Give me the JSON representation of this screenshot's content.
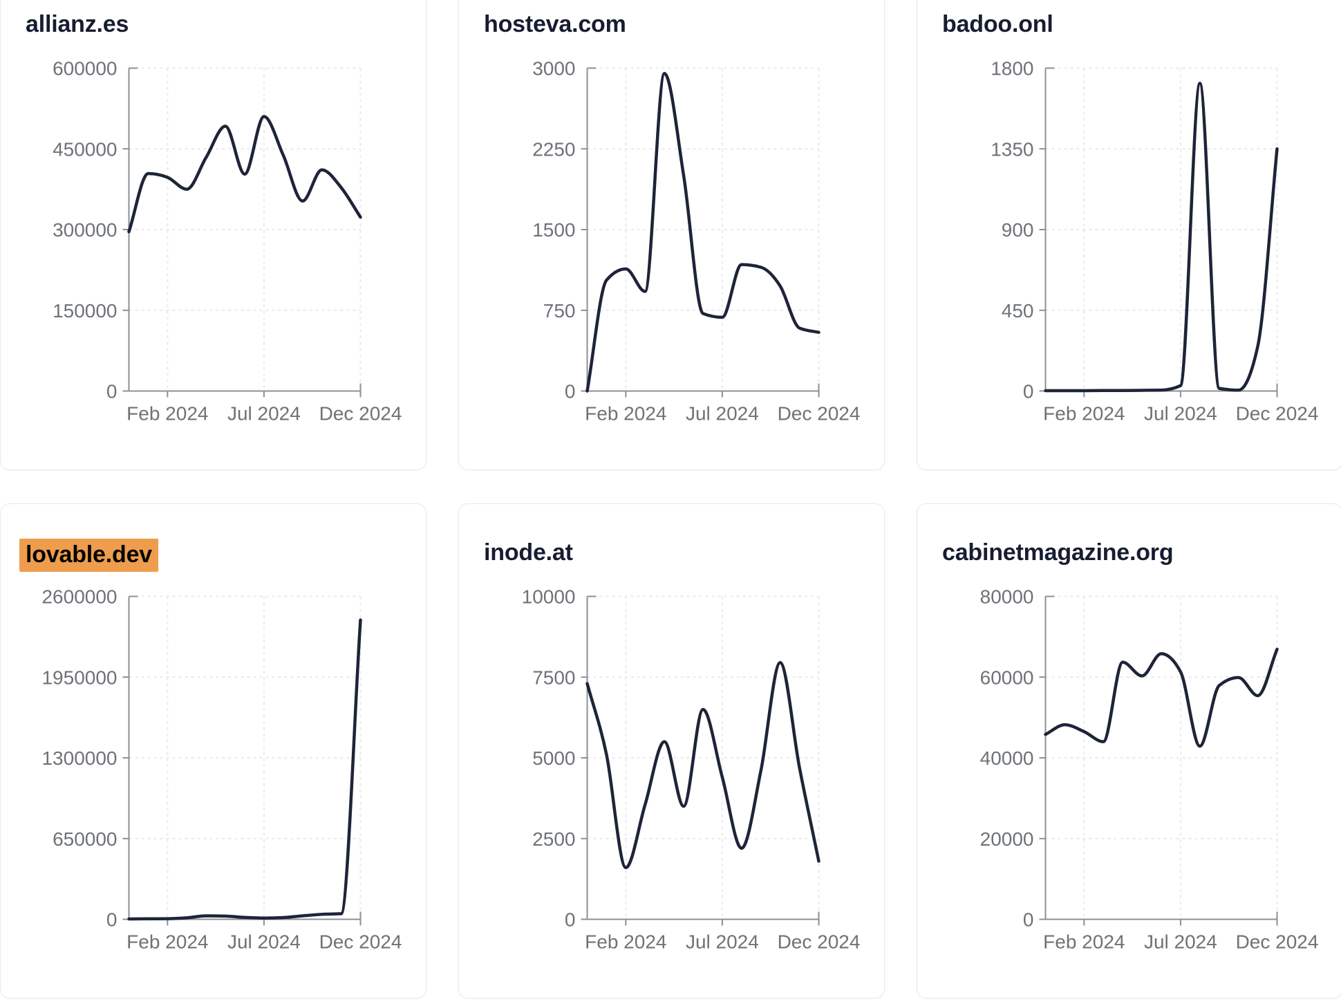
{
  "page": {
    "background": "#ffffff",
    "description": "Dashboard grid of six domain traffic line charts"
  },
  "colors": {
    "line": "#1e2438",
    "title": "#161d31",
    "axis_text": "#6e7277",
    "axis_stroke": "#8b8f96",
    "gridline": "#e9eaee",
    "card_border": "#e9e9f0",
    "highlight": "#ee9d4d"
  },
  "x_axis": {
    "tick_labels": [
      "Feb 2024",
      "Jul 2024",
      "Dec 2024"
    ],
    "tick_indices": [
      2,
      7,
      12
    ],
    "n_points": 13
  },
  "chart_data": [
    {
      "type": "line",
      "title": "allianz.es",
      "highlighted": false,
      "x": [
        "Dec 2023",
        "Jan 2024",
        "Feb 2024",
        "Mar 2024",
        "Apr 2024",
        "May 2024",
        "Jun 2024",
        "Jul 2024",
        "Aug 2024",
        "Sep 2024",
        "Oct 2024",
        "Nov 2024",
        "Dec 2024"
      ],
      "xlabel": "",
      "ylabel": "",
      "ylim": [
        0,
        600000
      ],
      "y_ticks": [
        0,
        150000,
        300000,
        450000,
        600000
      ],
      "values": [
        296000,
        404000,
        397000,
        375000,
        434000,
        492000,
        403000,
        510000,
        438000,
        353000,
        411000,
        378000,
        323000
      ],
      "legend": "none",
      "grid": "dashed"
    },
    {
      "type": "line",
      "title": "hosteva.com",
      "highlighted": false,
      "x": [
        "Dec 2023",
        "Jan 2024",
        "Feb 2024",
        "Mar 2024",
        "Apr 2024",
        "May 2024",
        "Jun 2024",
        "Jul 2024",
        "Aug 2024",
        "Sep 2024",
        "Oct 2024",
        "Nov 2024",
        "Dec 2024"
      ],
      "xlabel": "",
      "ylabel": "",
      "ylim": [
        0,
        3000
      ],
      "y_ticks": [
        0,
        750,
        1500,
        2250,
        3000
      ],
      "values": [
        0,
        1030,
        1135,
        925,
        2950,
        2000,
        720,
        685,
        1175,
        1150,
        975,
        585,
        545
      ],
      "legend": "none",
      "grid": "dashed"
    },
    {
      "type": "line",
      "title": "badoo.onl",
      "highlighted": false,
      "x": [
        "Dec 2023",
        "Jan 2024",
        "Feb 2024",
        "Mar 2024",
        "Apr 2024",
        "May 2024",
        "Jun 2024",
        "Jul 2024",
        "Aug 2024",
        "Sep 2024",
        "Oct 2024",
        "Nov 2024",
        "Dec 2024"
      ],
      "xlabel": "",
      "ylabel": "",
      "ylim": [
        0,
        1800
      ],
      "y_ticks": [
        0,
        450,
        900,
        1350,
        1800
      ],
      "values": [
        2,
        2,
        2,
        3,
        3,
        4,
        5,
        30,
        1715,
        15,
        5,
        250,
        1350
      ],
      "legend": "none",
      "grid": "dashed"
    },
    {
      "type": "line",
      "title": "lovable.dev",
      "highlighted": true,
      "x": [
        "Dec 2023",
        "Jan 2024",
        "Feb 2024",
        "Mar 2024",
        "Apr 2024",
        "May 2024",
        "Jun 2024",
        "Jul 2024",
        "Aug 2024",
        "Sep 2024",
        "Oct 2024",
        "Nov 2024",
        "Dec 2024"
      ],
      "xlabel": "",
      "ylabel": "",
      "ylim": [
        0,
        2600000
      ],
      "y_ticks": [
        0,
        650000,
        1300000,
        1950000,
        2600000
      ],
      "values": [
        3000,
        4000,
        5000,
        12000,
        28000,
        26000,
        15000,
        10000,
        14000,
        28000,
        40000,
        45000,
        2410000
      ],
      "legend": "none",
      "grid": "dashed"
    },
    {
      "type": "line",
      "title": "inode.at",
      "highlighted": false,
      "x": [
        "Dec 2023",
        "Jan 2024",
        "Feb 2024",
        "Mar 2024",
        "Apr 2024",
        "May 2024",
        "Jun 2024",
        "Jul 2024",
        "Aug 2024",
        "Sep 2024",
        "Oct 2024",
        "Nov 2024",
        "Dec 2024"
      ],
      "xlabel": "",
      "ylabel": "",
      "ylim": [
        0,
        10000
      ],
      "y_ticks": [
        0,
        2500,
        5000,
        7500,
        10000
      ],
      "values": [
        7300,
        5100,
        1600,
        3550,
        5500,
        3500,
        6500,
        4400,
        2200,
        4600,
        7950,
        4700,
        1800
      ],
      "legend": "none",
      "grid": "dashed"
    },
    {
      "type": "line",
      "title": "cabinetmagazine.org",
      "highlighted": false,
      "x": [
        "Dec 2023",
        "Jan 2024",
        "Feb 2024",
        "Mar 2024",
        "Apr 2024",
        "May 2024",
        "Jun 2024",
        "Jul 2024",
        "Aug 2024",
        "Sep 2024",
        "Oct 2024",
        "Nov 2024",
        "Dec 2024"
      ],
      "xlabel": "",
      "ylabel": "",
      "ylim": [
        0,
        80000
      ],
      "y_ticks": [
        0,
        20000,
        40000,
        60000,
        80000
      ],
      "values": [
        45800,
        48200,
        46500,
        44000,
        63700,
        60300,
        65800,
        61300,
        42900,
        57900,
        59900,
        55400,
        66900
      ],
      "legend": "none",
      "grid": "dashed"
    }
  ]
}
